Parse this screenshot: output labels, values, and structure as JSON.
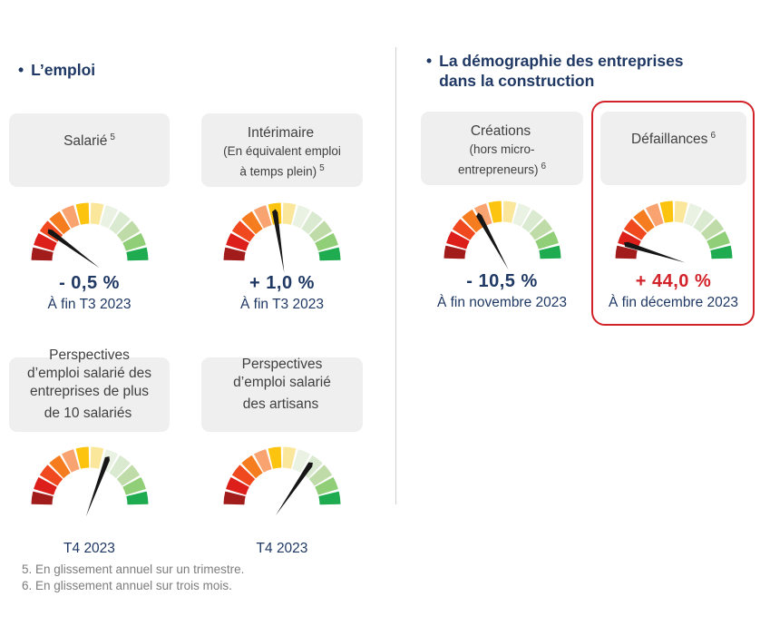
{
  "sections": {
    "left": {
      "title": "L’emploi"
    },
    "right": {
      "title": "La démographie des entreprises dans la construction"
    }
  },
  "indicators": [
    {
      "id": "salarie",
      "card_title": "Salarié",
      "sup_title": "5",
      "card_sub": null,
      "sup_sub": null,
      "value": "- 0,5 %",
      "period": "À fin T3 2023",
      "needle_deg": -52
    },
    {
      "id": "interimaire",
      "card_title": "Intérimaire",
      "sup_title": null,
      "card_sub": "(En équivalent emploi\nà temps plein)",
      "sup_sub": "5",
      "value": "+ 1,0 %",
      "period": "À fin T3 2023",
      "needle_deg": -7
    },
    {
      "id": "creations",
      "card_title": "Créations",
      "sup_title": null,
      "card_sub": "(hors micro-\nentrepreneurs)",
      "sup_sub": "6",
      "value": "- 10,5 %",
      "period": "À fin novembre 2023",
      "needle_deg": -27
    },
    {
      "id": "defaillances",
      "card_title": "Défaillances",
      "sup_title": "6",
      "card_sub": null,
      "sup_sub": null,
      "value": "+ 44,0 %",
      "period": "À fin décembre 2023",
      "needle_deg": -71
    },
    {
      "id": "perspectives-entreprises",
      "card_title": "Perspectives\nd’emploi salarié des\nentreprises de plus\nde 10 salariés",
      "sup_title": null,
      "card_sub": null,
      "sup_sub": null,
      "value": null,
      "period": "T4 2023",
      "needle_deg": 22
    },
    {
      "id": "perspectives-artisans",
      "card_title": "Perspectives\nd’emploi salarié\ndes artisans",
      "sup_title": null,
      "card_sub": null,
      "sup_sub": null,
      "value": null,
      "period": "T4 2023",
      "needle_deg": 36
    }
  ],
  "gauge": {
    "segment_colors": [
      "#a21c1c",
      "#dc1f1a",
      "#f0491f",
      "#f57d20",
      "#f9a470",
      "#fcc40e",
      "#fbe79c",
      "#eaf2e3",
      "#d9ead0",
      "#bfdca8",
      "#90ce77",
      "#1fab50"
    ],
    "needle_color": "#161616",
    "segments": 12,
    "arc_degrees": 180
  },
  "footnotes": [
    "5. En glissement annuel sur un trimestre.",
    "6. En glissement annuel sur trois mois."
  ],
  "colors": {
    "title_navy": "#1f3864",
    "alert_red": "#d2232a",
    "card_bg": "#efefef",
    "card_text": "#404040",
    "footnote_gray": "#7d7d7d",
    "divider_gray": "#cfcfcf"
  },
  "chart_data": [
    {
      "type": "gauge",
      "title": "Salarié",
      "value_pct": -0.5,
      "value_label": "- 0,5 %",
      "period": "À fin T3 2023",
      "needle_zone": "red",
      "scale": "qualitative 12-segment red-to-green semicircle"
    },
    {
      "type": "gauge",
      "title": "Intérimaire (En équivalent emploi à temps plein)",
      "value_pct": 1.0,
      "value_label": "+ 1,0 %",
      "period": "À fin T3 2023",
      "needle_zone": "yellow",
      "scale": "qualitative 12-segment red-to-green semicircle"
    },
    {
      "type": "gauge",
      "title": "Créations (hors micro-entrepreneurs)",
      "value_pct": -10.5,
      "value_label": "- 10,5 %",
      "period": "À fin novembre 2023",
      "needle_zone": "orange",
      "scale": "qualitative 12-segment red-to-green semicircle"
    },
    {
      "type": "gauge",
      "title": "Défaillances",
      "value_pct": 44.0,
      "value_label": "+ 44,0 %",
      "period": "À fin décembre 2023",
      "needle_zone": "dark-red",
      "highlighted": true,
      "scale": "qualitative 12-segment red-to-green semicircle"
    },
    {
      "type": "gauge",
      "title": "Perspectives d’emploi salarié des entreprises de plus de 10 salariés",
      "value_pct": null,
      "value_label": null,
      "period": "T4 2023",
      "needle_zone": "pale-green",
      "scale": "qualitative 12-segment red-to-green semicircle"
    },
    {
      "type": "gauge",
      "title": "Perspectives d’emploi salarié des artisans",
      "value_pct": null,
      "value_label": null,
      "period": "T4 2023",
      "needle_zone": "light-green",
      "scale": "qualitative 12-segment red-to-green semicircle"
    }
  ]
}
